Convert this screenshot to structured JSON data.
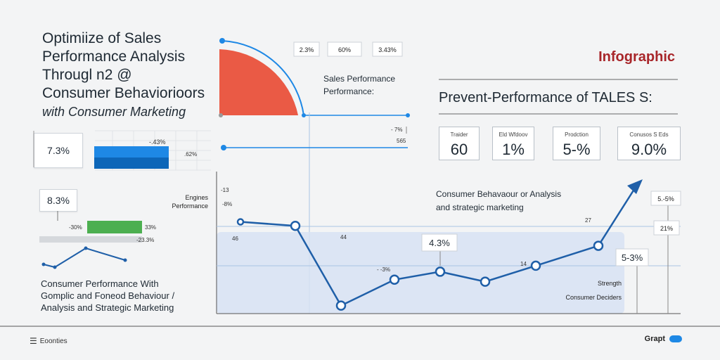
{
  "title": {
    "lines": [
      "Optimiize of Sales",
      "Performance Analysis",
      "Througl n2 @",
      "Consumer Behaviorioors"
    ],
    "subtitle": "with Consumer Marketing"
  },
  "left_stats": {
    "stat1": "7.3%",
    "bar1_top_label": "-.43%",
    "bar1_right_label": ".62%",
    "stat2": "8.3%",
    "bar2_left_label": "-30%",
    "bar2_right_label": "33%",
    "bar2_bottom_label": "-23.3%"
  },
  "caption_bottom_left": [
    "Consumer Performance With",
    "Gomplic and Foneod Behaviour /",
    "Analysis and Strategic Marketing"
  ],
  "top_values": [
    "2.3%",
    "60%",
    "3.43%"
  ],
  "sales_perf": [
    "Sales Performance",
    "Performance:"
  ],
  "slider_labels": [
    "- 7%",
    "565"
  ],
  "infographic": "Infographic",
  "prevent_title": "Prevent-Performance of TALES S:",
  "kpis": [
    {
      "label": "Traider",
      "value": "60"
    },
    {
      "label": "Eld Wfdoov",
      "value": "1%"
    },
    {
      "label": "Prodction",
      "value": "5-%"
    },
    {
      "label": "Conusos S Eds",
      "value": "9.0%"
    }
  ],
  "chart_labels": {
    "engines": "Engines",
    "performance": "Performance",
    "tick1": "-13",
    "tick2": "-8%",
    "left_value": "46",
    "mid_value": "44",
    "callout_43": "4.3%",
    "small_mid": "- -3%",
    "val_14": "14",
    "val_27": "27",
    "callout_right1": "5-3%",
    "right_top": "5.-5%",
    "right_mid": "21%",
    "strength": "Strength",
    "consumer_deciders": "Consumer Deciders",
    "behaviour_line1": "Consumer Behavaour or Analysis",
    "behaviour_line2": "and strategic marketing"
  },
  "footer": {
    "left": "Eoonties",
    "right": "Grapt"
  },
  "colors": {
    "accent": "#1e88e5",
    "line": "#1f5fa8",
    "red": "#ea5a45",
    "green": "#4caf50",
    "title_red": "#a8262a"
  },
  "chart_data": {
    "type": "line",
    "x": [
      1,
      2,
      3,
      4,
      5,
      6,
      7,
      8
    ],
    "y": [
      46,
      44,
      4,
      17,
      21,
      16,
      24,
      34
    ],
    "title": "",
    "xlabel": "",
    "ylabel": "",
    "ylim": [
      0,
      55
    ],
    "grid": true
  }
}
